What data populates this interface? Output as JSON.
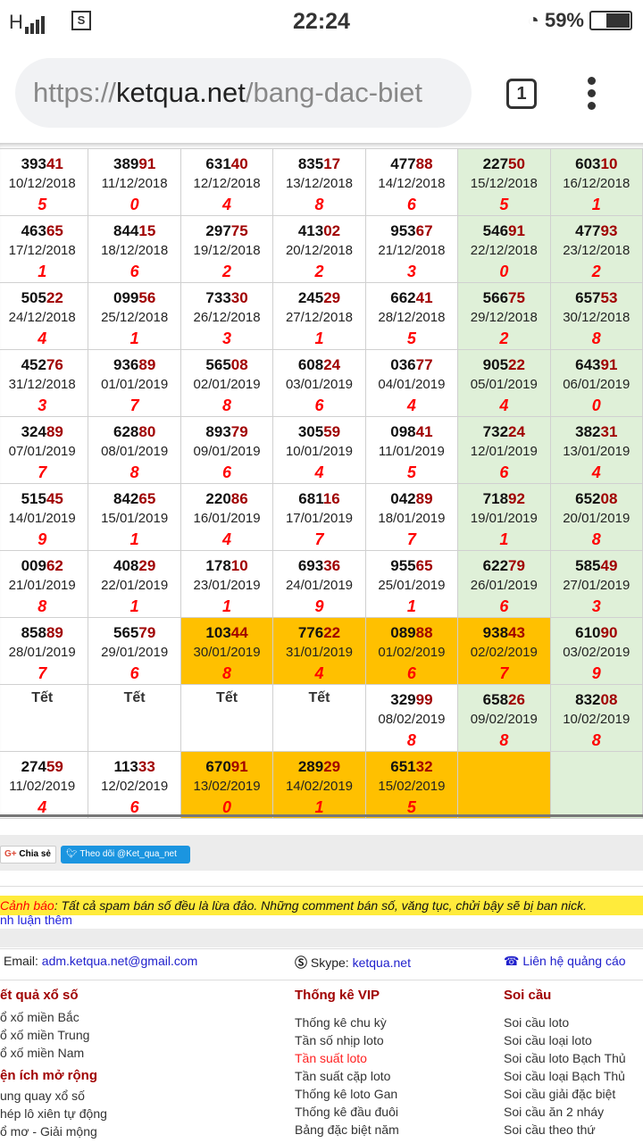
{
  "status_bar": {
    "network": "H",
    "time": "22:24",
    "battery": "59%",
    "battery_level": 59
  },
  "browser": {
    "url_scheme": "https://",
    "url_domain": "ketqua.net",
    "url_path": "/bang-dac-biet",
    "tab_count": "1"
  },
  "colors": {
    "green": "#dff0d8",
    "orange": "#ffc000",
    "tail": "#a00000",
    "sum": "#ff0000",
    "warning_bg": "#ffeb3b"
  },
  "table": {
    "rows": [
      [
        {
          "n": "39341",
          "d": "10/12/2018",
          "s": "5"
        },
        {
          "n": "38991",
          "d": "11/12/2018",
          "s": "0"
        },
        {
          "n": "63140",
          "d": "12/12/2018",
          "s": "4"
        },
        {
          "n": "83517",
          "d": "13/12/2018",
          "s": "8"
        },
        {
          "n": "47788",
          "d": "14/12/2018",
          "s": "6"
        },
        {
          "n": "22750",
          "d": "15/12/2018",
          "s": "5",
          "bg": "green"
        },
        {
          "n": "60310",
          "d": "16/12/2018",
          "s": "1",
          "bg": "green"
        }
      ],
      [
        {
          "n": "46365",
          "d": "17/12/2018",
          "s": "1"
        },
        {
          "n": "84415",
          "d": "18/12/2018",
          "s": "6"
        },
        {
          "n": "29775",
          "d": "19/12/2018",
          "s": "2"
        },
        {
          "n": "41302",
          "d": "20/12/2018",
          "s": "2"
        },
        {
          "n": "95367",
          "d": "21/12/2018",
          "s": "3"
        },
        {
          "n": "54691",
          "d": "22/12/2018",
          "s": "0",
          "bg": "green"
        },
        {
          "n": "47793",
          "d": "23/12/2018",
          "s": "2",
          "bg": "green"
        }
      ],
      [
        {
          "n": "50522",
          "d": "24/12/2018",
          "s": "4"
        },
        {
          "n": "09956",
          "d": "25/12/2018",
          "s": "1"
        },
        {
          "n": "73330",
          "d": "26/12/2018",
          "s": "3"
        },
        {
          "n": "24529",
          "d": "27/12/2018",
          "s": "1"
        },
        {
          "n": "66241",
          "d": "28/12/2018",
          "s": "5"
        },
        {
          "n": "56675",
          "d": "29/12/2018",
          "s": "2",
          "bg": "green"
        },
        {
          "n": "65753",
          "d": "30/12/2018",
          "s": "8",
          "bg": "green"
        }
      ],
      [
        {
          "n": "45276",
          "d": "31/12/2018",
          "s": "3"
        },
        {
          "n": "93689",
          "d": "01/01/2019",
          "s": "7"
        },
        {
          "n": "56508",
          "d": "02/01/2019",
          "s": "8"
        },
        {
          "n": "60824",
          "d": "03/01/2019",
          "s": "6"
        },
        {
          "n": "03677",
          "d": "04/01/2019",
          "s": "4"
        },
        {
          "n": "90522",
          "d": "05/01/2019",
          "s": "4",
          "bg": "green"
        },
        {
          "n": "64391",
          "d": "06/01/2019",
          "s": "0",
          "bg": "green"
        }
      ],
      [
        {
          "n": "32489",
          "d": "07/01/2019",
          "s": "7"
        },
        {
          "n": "62880",
          "d": "08/01/2019",
          "s": "8"
        },
        {
          "n": "89379",
          "d": "09/01/2019",
          "s": "6"
        },
        {
          "n": "30559",
          "d": "10/01/2019",
          "s": "4"
        },
        {
          "n": "09841",
          "d": "11/01/2019",
          "s": "5"
        },
        {
          "n": "73224",
          "d": "12/01/2019",
          "s": "6",
          "bg": "green"
        },
        {
          "n": "38231",
          "d": "13/01/2019",
          "s": "4",
          "bg": "green"
        }
      ],
      [
        {
          "n": "51545",
          "d": "14/01/2019",
          "s": "9"
        },
        {
          "n": "84265",
          "d": "15/01/2019",
          "s": "1"
        },
        {
          "n": "22086",
          "d": "16/01/2019",
          "s": "4"
        },
        {
          "n": "68116",
          "d": "17/01/2019",
          "s": "7"
        },
        {
          "n": "04289",
          "d": "18/01/2019",
          "s": "7"
        },
        {
          "n": "71892",
          "d": "19/01/2019",
          "s": "1",
          "bg": "green"
        },
        {
          "n": "65208",
          "d": "20/01/2019",
          "s": "8",
          "bg": "green"
        }
      ],
      [
        {
          "n": "00962",
          "d": "21/01/2019",
          "s": "8"
        },
        {
          "n": "40829",
          "d": "22/01/2019",
          "s": "1"
        },
        {
          "n": "17810",
          "d": "23/01/2019",
          "s": "1"
        },
        {
          "n": "69336",
          "d": "24/01/2019",
          "s": "9"
        },
        {
          "n": "95565",
          "d": "25/01/2019",
          "s": "1"
        },
        {
          "n": "62279",
          "d": "26/01/2019",
          "s": "6",
          "bg": "green"
        },
        {
          "n": "58549",
          "d": "27/01/2019",
          "s": "3",
          "bg": "green"
        }
      ],
      [
        {
          "n": "85889",
          "d": "28/01/2019",
          "s": "7"
        },
        {
          "n": "56579",
          "d": "29/01/2019",
          "s": "6"
        },
        {
          "n": "10344",
          "d": "30/01/2019",
          "s": "8",
          "bg": "orange"
        },
        {
          "n": "77622",
          "d": "31/01/2019",
          "s": "4",
          "bg": "orange"
        },
        {
          "n": "08988",
          "d": "01/02/2019",
          "s": "6",
          "bg": "orange"
        },
        {
          "n": "93843",
          "d": "02/02/2019",
          "s": "7",
          "bg": "orange"
        },
        {
          "n": "61090",
          "d": "03/02/2019",
          "s": "9",
          "bg": "green"
        }
      ],
      [
        {
          "t": "Tết"
        },
        {
          "t": "Tết"
        },
        {
          "t": "Tết"
        },
        {
          "t": "Tết"
        },
        {
          "n": "32999",
          "d": "08/02/2019",
          "s": "8"
        },
        {
          "n": "65826",
          "d": "09/02/2019",
          "s": "8",
          "bg": "green"
        },
        {
          "n": "83208",
          "d": "10/02/2019",
          "s": "8",
          "bg": "green"
        }
      ],
      [
        {
          "n": "27459",
          "d": "11/02/2019",
          "s": "4"
        },
        {
          "n": "11333",
          "d": "12/02/2019",
          "s": "6"
        },
        {
          "n": "67091",
          "d": "13/02/2019",
          "s": "0",
          "bg": "orange"
        },
        {
          "n": "28929",
          "d": "14/02/2019",
          "s": "1",
          "bg": "orange"
        },
        {
          "n": "65132",
          "d": "15/02/2019",
          "s": "5",
          "bg": "orange"
        },
        {
          "bg": "orange"
        },
        {
          "bg": "green"
        }
      ]
    ]
  },
  "share": {
    "google_label": "Chia sẻ",
    "google_icon": "G+",
    "twitter_label": "Theo dõi @Ket_qua_net"
  },
  "warning": {
    "label": "Cảnh báo",
    "text": ": Tất cả spam bán số đều là lừa đảo. Những comment bán số, văng tục, chửi bậy sẽ bị ban nick."
  },
  "more_comments": "nh luận thêm",
  "contact": {
    "email_label": "Email: ",
    "email": "adm.ketqua.net@gmail.com",
    "skype_label": " Skype: ",
    "skype": "ketqua.net",
    "ads": "Liên hệ quảng cáo"
  },
  "footer": {
    "col1": {
      "title": "ết quả xổ số",
      "items": [
        "ổ xố miền Bắc",
        "ổ xố miền Trung",
        "ổ xố miền Nam"
      ],
      "title2": "ện ích mở rộng",
      "items2": [
        "ung quay xổ số",
        "hép lô xiên tự động",
        "ổ mơ - Giải mộng"
      ]
    },
    "col2": {
      "title": "Thống kê VIP",
      "items": [
        "Thống kê chu kỳ",
        "Tần số nhịp loto",
        "Tần suất loto",
        "Tần suất cặp loto",
        "Thống kê loto Gan",
        "Thống kê đầu đuôi",
        "Bảng đặc biệt năm"
      ],
      "active_index": 2
    },
    "col3": {
      "title": "Soi cầu",
      "items": [
        "Soi cầu loto",
        "Soi cầu loại loto",
        "Soi cầu loto Bạch Thủ",
        "Soi cầu loại Bạch Thủ",
        "Soi cầu giải đặc biệt",
        "Soi cầu ăn 2 nháy",
        "Soi cầu theo thứ"
      ]
    }
  }
}
